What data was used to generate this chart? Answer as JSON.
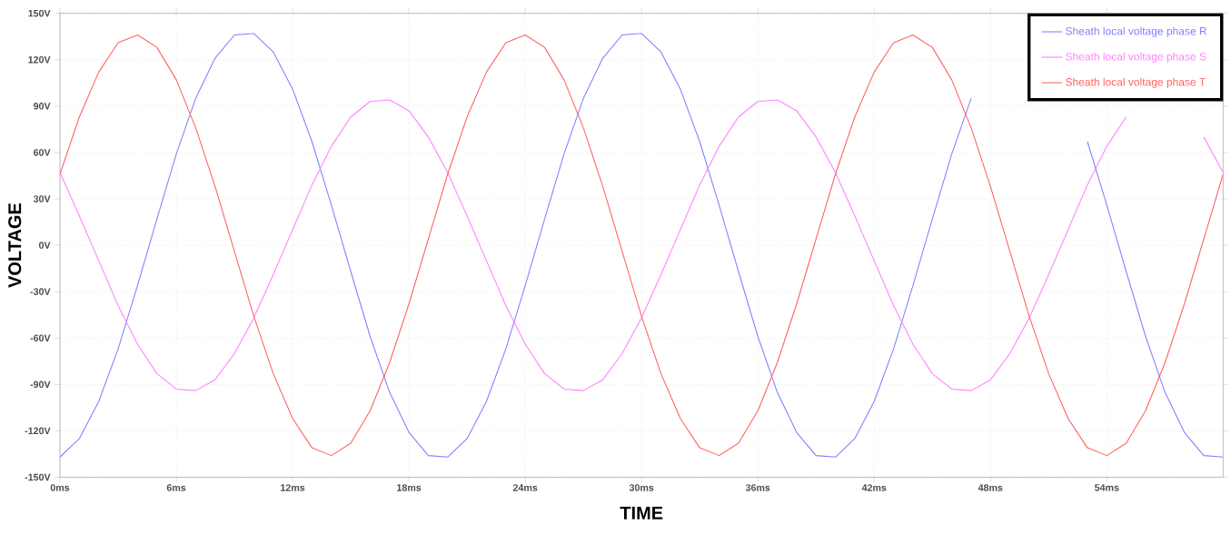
{
  "chart_data": {
    "type": "line",
    "xlabel": "TIME",
    "ylabel": "VOLTAGE",
    "x": [
      0,
      1,
      2,
      3,
      4,
      5,
      6,
      7,
      8,
      9,
      10,
      11,
      12,
      13,
      14,
      15,
      16,
      17,
      18,
      19,
      20,
      21,
      22,
      23,
      24,
      25,
      26,
      27,
      28,
      29,
      30,
      31,
      32,
      33,
      34,
      35,
      36,
      37,
      38,
      39,
      40,
      41,
      42,
      43,
      44,
      45,
      46,
      47,
      48,
      49,
      50,
      51,
      52,
      53,
      54,
      55,
      56,
      57,
      58,
      59,
      60
    ],
    "series": [
      {
        "name": "Sheath local voltage phase R",
        "color": "#8080ff",
        "values": [
          -137,
          -125,
          -101,
          -67,
          -26,
          17,
          59,
          95,
          121,
          136,
          137,
          125,
          101,
          67,
          26,
          -17,
          -59,
          -95,
          -121,
          -136,
          -137,
          -125,
          -101,
          -67,
          -26,
          17,
          59,
          95,
          121,
          136,
          137,
          125,
          101,
          67,
          26,
          -17,
          -59,
          -95,
          -121,
          -136,
          -137,
          -125,
          -101,
          -67,
          -26,
          17,
          59,
          95,
          null,
          null,
          null,
          null,
          null,
          67,
          26,
          -17,
          -59,
          -95,
          -121,
          -136,
          -137
        ]
      },
      {
        "name": "Sheath local voltage phase S",
        "color": "#ff80ff",
        "values": [
          47,
          19,
          -10,
          -39,
          -64,
          -83,
          -93,
          -94,
          -87,
          -70,
          -47,
          -19,
          10,
          39,
          64,
          83,
          93,
          94,
          87,
          70,
          47,
          19,
          -10,
          -39,
          -64,
          -83,
          -93,
          -94,
          -87,
          -70,
          -47,
          -19,
          10,
          39,
          64,
          83,
          93,
          94,
          87,
          70,
          47,
          19,
          -10,
          -39,
          -64,
          -83,
          -93,
          -94,
          -87,
          -70,
          -47,
          -19,
          10,
          39,
          64,
          83,
          null,
          null,
          null,
          70,
          47
        ]
      },
      {
        "name": "Sheath local voltage phase T",
        "color": "#ff6060",
        "values": [
          46,
          83,
          112,
          131,
          136,
          128,
          107,
          76,
          38,
          -4,
          -46,
          -83,
          -112,
          -131,
          -136,
          -128,
          -107,
          -76,
          -38,
          4,
          46,
          83,
          112,
          131,
          136,
          128,
          107,
          76,
          38,
          -4,
          -46,
          -83,
          -112,
          -131,
          -136,
          -128,
          -107,
          -76,
          -38,
          4,
          46,
          83,
          112,
          131,
          136,
          128,
          107,
          76,
          38,
          -4,
          -46,
          -83,
          -112,
          -131,
          -136,
          -128,
          -107,
          -76,
          -38,
          4,
          46
        ]
      }
    ],
    "xlim": [
      0,
      60
    ],
    "xticks": [
      {
        "value": 0,
        "label": "0ms"
      },
      {
        "value": 6,
        "label": "6ms"
      },
      {
        "value": 12,
        "label": "12ms"
      },
      {
        "value": 18,
        "label": "18ms"
      },
      {
        "value": 24,
        "label": "24ms"
      },
      {
        "value": 30,
        "label": "30ms"
      },
      {
        "value": 36,
        "label": "36ms"
      },
      {
        "value": 42,
        "label": "42ms"
      },
      {
        "value": 48,
        "label": "48ms"
      },
      {
        "value": 54,
        "label": "54ms"
      }
    ],
    "ylim": [
      -150,
      150
    ],
    "yticks": [
      {
        "value": -150,
        "label": "-150V"
      },
      {
        "value": -120,
        "label": "-120V"
      },
      {
        "value": -90,
        "label": "-90V"
      },
      {
        "value": -60,
        "label": "-60V"
      },
      {
        "value": -30,
        "label": "-30V"
      },
      {
        "value": 0,
        "label": "0V"
      },
      {
        "value": 30,
        "label": "30V"
      },
      {
        "value": 60,
        "label": "60V"
      },
      {
        "value": 90,
        "label": "90V"
      },
      {
        "value": 120,
        "label": "120V"
      },
      {
        "value": 150,
        "label": "150V"
      }
    ],
    "grid": true,
    "legend": "top right",
    "marker": "none",
    "line_style": "solid"
  }
}
